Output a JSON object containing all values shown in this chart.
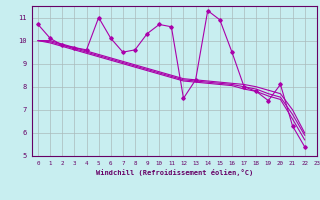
{
  "xlabel": "Windchill (Refroidissement éolien,°C)",
  "background_color": "#c8eef0",
  "line_color": "#aa00aa",
  "grid_color": "#aabbbb",
  "xlim": [
    -0.5,
    22.5
  ],
  "ylim": [
    5,
    11.5
  ],
  "yticks": [
    5,
    6,
    7,
    8,
    9,
    10,
    11
  ],
  "xticks": [
    0,
    1,
    2,
    3,
    4,
    5,
    6,
    7,
    8,
    9,
    10,
    11,
    12,
    13,
    14,
    15,
    16,
    17,
    18,
    19,
    20,
    21,
    22,
    23
  ],
  "series": [
    [
      10.7,
      10.1,
      9.8,
      9.7,
      9.6,
      11.0,
      10.1,
      9.5,
      9.6,
      10.3,
      10.7,
      10.6,
      7.5,
      8.3,
      11.3,
      10.9,
      9.5,
      8.0,
      7.8,
      7.4,
      8.1,
      6.3,
      5.4
    ],
    [
      10.0,
      10.0,
      9.85,
      9.7,
      9.55,
      9.4,
      9.25,
      9.1,
      8.95,
      8.8,
      8.65,
      8.5,
      8.35,
      8.3,
      8.25,
      8.2,
      8.15,
      8.1,
      8.0,
      7.85,
      7.7,
      7.0,
      6.0
    ],
    [
      10.0,
      9.95,
      9.8,
      9.65,
      9.5,
      9.35,
      9.2,
      9.05,
      8.9,
      8.75,
      8.6,
      8.45,
      8.3,
      8.25,
      8.2,
      8.15,
      8.1,
      8.0,
      7.9,
      7.7,
      7.55,
      6.8,
      5.9
    ],
    [
      10.0,
      9.9,
      9.75,
      9.6,
      9.45,
      9.3,
      9.15,
      9.0,
      8.85,
      8.7,
      8.55,
      8.4,
      8.25,
      8.2,
      8.15,
      8.1,
      8.05,
      7.9,
      7.8,
      7.6,
      7.45,
      6.6,
      5.7
    ]
  ]
}
